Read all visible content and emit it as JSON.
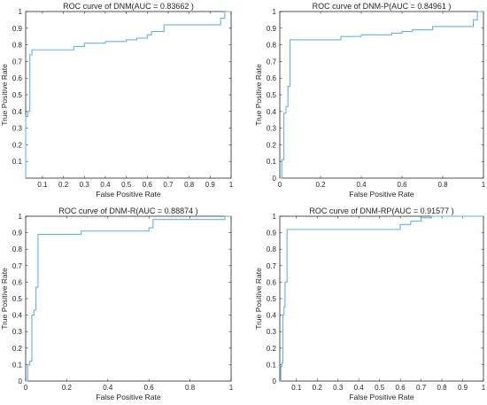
{
  "chart_data": [
    {
      "type": "line",
      "title": "ROC curve of DNM(AUC = 0.83662 )",
      "xlabel": "False Positive Rate",
      "ylabel": "True Positive Rate",
      "xlim": [
        0.02,
        1.0
      ],
      "ylim": [
        0.0,
        1.0
      ],
      "xticks": [
        "0.1",
        "0.2",
        "0.3",
        "0.4",
        "0.5",
        "0.6",
        "0.7",
        "0.8",
        "0.9",
        "1"
      ],
      "xtick_values": [
        0.1,
        0.2,
        0.3,
        0.4,
        0.5,
        0.6,
        0.7,
        0.8,
        0.9,
        1.0
      ],
      "yticks": [
        "0.1",
        "0.2",
        "0.3",
        "0.4",
        "0.5",
        "0.6",
        "0.7",
        "0.8",
        "0.9",
        "1"
      ],
      "ytick_values": [
        0.1,
        0.2,
        0.3,
        0.4,
        0.5,
        0.6,
        0.7,
        0.8,
        0.9,
        1.0
      ],
      "grid": false,
      "color": "#6ab0e0",
      "series": [
        {
          "x": [
            0.02,
            0.02,
            0.03,
            0.03,
            0.04,
            0.04,
            0.05,
            0.05,
            0.25,
            0.25,
            0.3,
            0.3,
            0.4,
            0.4,
            0.5,
            0.5,
            0.55,
            0.55,
            0.6,
            0.6,
            0.62,
            0.62,
            0.68,
            0.68,
            0.95,
            0.95,
            0.97,
            0.97,
            1.0
          ],
          "y": [
            0.0,
            0.37,
            0.37,
            0.4,
            0.4,
            0.74,
            0.74,
            0.77,
            0.77,
            0.79,
            0.79,
            0.81,
            0.81,
            0.82,
            0.82,
            0.83,
            0.83,
            0.84,
            0.84,
            0.86,
            0.86,
            0.88,
            0.88,
            0.92,
            0.92,
            0.96,
            0.96,
            1.0,
            1.0
          ]
        }
      ]
    },
    {
      "type": "line",
      "title": "ROC curve of DNM-P(AUC = 0.84961 )",
      "xlabel": "False Positive Rate",
      "ylabel": "True Positive Rate",
      "xlim": [
        0.0,
        1.0
      ],
      "ylim": [
        0.0,
        1.0
      ],
      "xticks": [
        "0",
        "0.2",
        "0.4",
        "0.6",
        "0.8",
        "1"
      ],
      "xtick_values": [
        0.0,
        0.2,
        0.4,
        0.6,
        0.8,
        1.0
      ],
      "yticks": [
        "0",
        "0.1",
        "0.2",
        "0.3",
        "0.4",
        "0.5",
        "0.6",
        "0.7",
        "0.8",
        "0.9",
        "1"
      ],
      "ytick_values": [
        0.0,
        0.1,
        0.2,
        0.3,
        0.4,
        0.5,
        0.6,
        0.7,
        0.8,
        0.9,
        1.0
      ],
      "grid": false,
      "color": "#6ab0e0",
      "series": [
        {
          "x": [
            0.0,
            0.01,
            0.01,
            0.02,
            0.02,
            0.03,
            0.03,
            0.04,
            0.04,
            0.05,
            0.05,
            0.3,
            0.3,
            0.4,
            0.4,
            0.55,
            0.55,
            0.6,
            0.6,
            0.65,
            0.65,
            0.75,
            0.75,
            0.95,
            0.95,
            0.97,
            0.97,
            1.0
          ],
          "y": [
            0.0,
            0.0,
            0.11,
            0.11,
            0.39,
            0.39,
            0.43,
            0.43,
            0.55,
            0.55,
            0.83,
            0.83,
            0.85,
            0.85,
            0.86,
            0.86,
            0.87,
            0.87,
            0.88,
            0.88,
            0.89,
            0.89,
            0.91,
            0.91,
            0.95,
            0.95,
            1.0,
            1.0
          ]
        }
      ]
    },
    {
      "type": "line",
      "title": "ROC curve of DNM-R(AUC = 0.88874 )",
      "xlabel": "False Positive Rate",
      "ylabel": "True Positive Rate",
      "xlim": [
        0.0,
        1.0
      ],
      "ylim": [
        0.0,
        1.0
      ],
      "xticks": [
        "0",
        "0.2",
        "0.4",
        "0.6",
        "0.8",
        "1"
      ],
      "xtick_values": [
        0.0,
        0.2,
        0.4,
        0.6,
        0.8,
        1.0
      ],
      "yticks": [
        "0",
        "0.1",
        "0.2",
        "0.3",
        "0.4",
        "0.5",
        "0.6",
        "0.7",
        "0.8",
        "0.9",
        "1"
      ],
      "ytick_values": [
        0.0,
        0.1,
        0.2,
        0.3,
        0.4,
        0.5,
        0.6,
        0.7,
        0.8,
        0.9,
        1.0
      ],
      "grid": false,
      "color": "#6ab0e0",
      "series": [
        {
          "x": [
            0.0,
            0.01,
            0.01,
            0.02,
            0.02,
            0.03,
            0.03,
            0.04,
            0.04,
            0.05,
            0.05,
            0.06,
            0.06,
            0.27,
            0.27,
            0.6,
            0.6,
            0.62,
            0.62,
            0.97,
            0.97,
            1.0
          ],
          "y": [
            0.0,
            0.0,
            0.1,
            0.1,
            0.12,
            0.12,
            0.4,
            0.4,
            0.43,
            0.43,
            0.57,
            0.57,
            0.89,
            0.89,
            0.91,
            0.91,
            0.93,
            0.93,
            0.98,
            0.98,
            1.0,
            1.0
          ]
        }
      ]
    },
    {
      "type": "line",
      "title": "ROC curve of DNM-RP(AUC = 0.91577 )",
      "xlabel": "False Positive Rate",
      "ylabel": "True Positive Rate",
      "xlim": [
        0.02,
        1.0
      ],
      "ylim": [
        0.0,
        1.0
      ],
      "xticks": [
        "0.1",
        "0.2",
        "0.3",
        "0.4",
        "0.5",
        "0.6",
        "0.7",
        "0.8",
        "0.9",
        "1"
      ],
      "xtick_values": [
        0.1,
        0.2,
        0.3,
        0.4,
        0.5,
        0.6,
        0.7,
        0.8,
        0.9,
        1.0
      ],
      "yticks": [
        "0",
        "0.1",
        "0.2",
        "0.3",
        "0.4",
        "0.5",
        "0.6",
        "0.7",
        "0.8",
        "0.9",
        "1"
      ],
      "ytick_values": [
        0.0,
        0.1,
        0.2,
        0.3,
        0.4,
        0.5,
        0.6,
        0.7,
        0.8,
        0.9,
        1.0
      ],
      "grid": false,
      "color": "#6ab0e0",
      "series": [
        {
          "x": [
            0.02,
            0.025,
            0.025,
            0.03,
            0.03,
            0.035,
            0.035,
            0.04,
            0.04,
            0.045,
            0.045,
            0.055,
            0.055,
            0.6,
            0.6,
            0.65,
            0.65,
            0.7,
            0.7,
            0.75,
            0.75,
            1.0
          ],
          "y": [
            0.0,
            0.0,
            0.09,
            0.09,
            0.11,
            0.11,
            0.4,
            0.4,
            0.45,
            0.45,
            0.6,
            0.6,
            0.92,
            0.92,
            0.95,
            0.95,
            0.97,
            0.97,
            0.99,
            0.99,
            1.0,
            1.0
          ]
        }
      ]
    }
  ]
}
